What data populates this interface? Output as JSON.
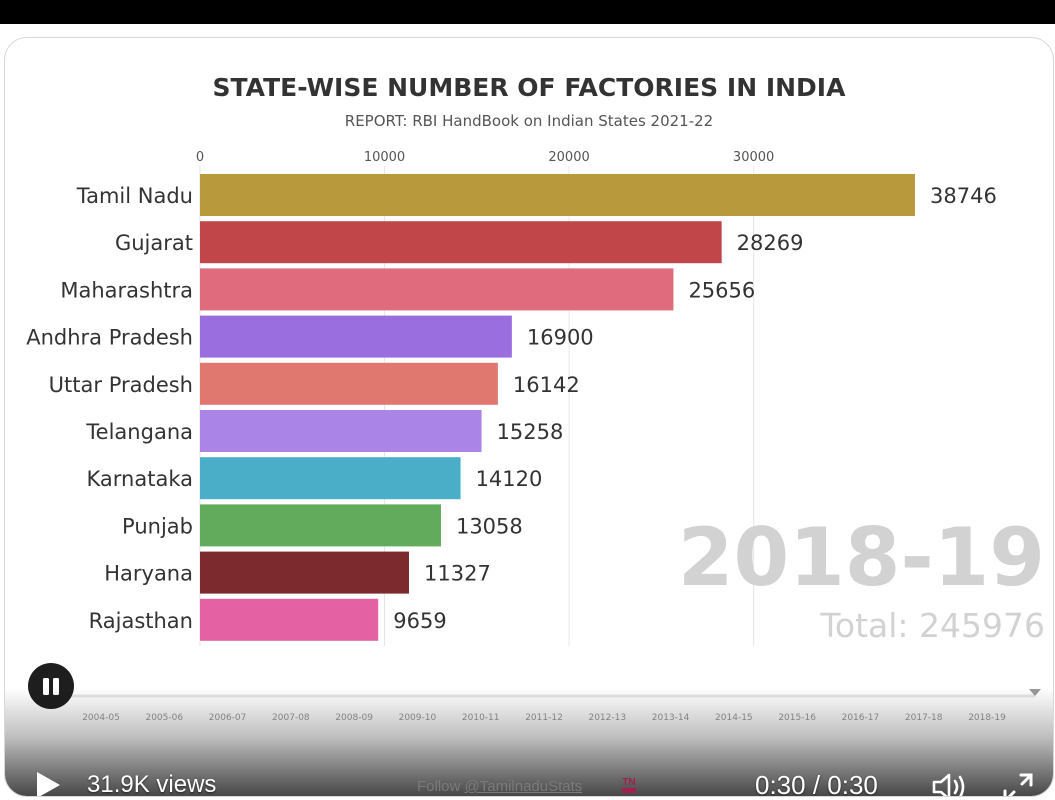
{
  "chart_data": {
    "type": "bar",
    "orientation": "horizontal",
    "title": "STATE-WISE NUMBER OF FACTORIES IN INDIA",
    "subtitle": "REPORT: RBI HandBook on Indian States 2021-22",
    "xlim": [
      0,
      38746
    ],
    "xticks": [
      0,
      10000,
      20000,
      30000
    ],
    "categories": [
      "Tamil Nadu",
      "Gujarat",
      "Maharashtra",
      "Andhra Pradesh",
      "Uttar Pradesh",
      "Telangana",
      "Karnataka",
      "Punjab",
      "Haryana",
      "Rajasthan"
    ],
    "values": [
      38746,
      28269,
      25656,
      16900,
      16142,
      15258,
      14120,
      13058,
      11327,
      9659
    ],
    "colors": [
      "#b89a3c",
      "#c0464a",
      "#e06b7d",
      "#9b6ee0",
      "#e07870",
      "#aa84e6",
      "#4aaec8",
      "#62aa5c",
      "#7c2a2e",
      "#e462a4"
    ],
    "year_label": "2018-19",
    "total_label": "Total: 245976",
    "timeline": [
      "2004-05",
      "2005-06",
      "2006-07",
      "2007-08",
      "2008-09",
      "2009-10",
      "2010-11",
      "2011-12",
      "2012-13",
      "2013-14",
      "2014-15",
      "2015-16",
      "2016-17",
      "2017-18",
      "2018-19"
    ],
    "timeline_progress": 1.0
  },
  "player": {
    "views": "31.9K views",
    "follow_prefix": "Follow ",
    "follow_handle": "@TamilnaduStats",
    "logo_text": "TN",
    "time": "0:30 / 0:30",
    "play_icon": "play-icon",
    "pause_icon": "pause-icon",
    "volume_icon": "volume-icon",
    "fullscreen_icon": "fullscreen-icon"
  }
}
